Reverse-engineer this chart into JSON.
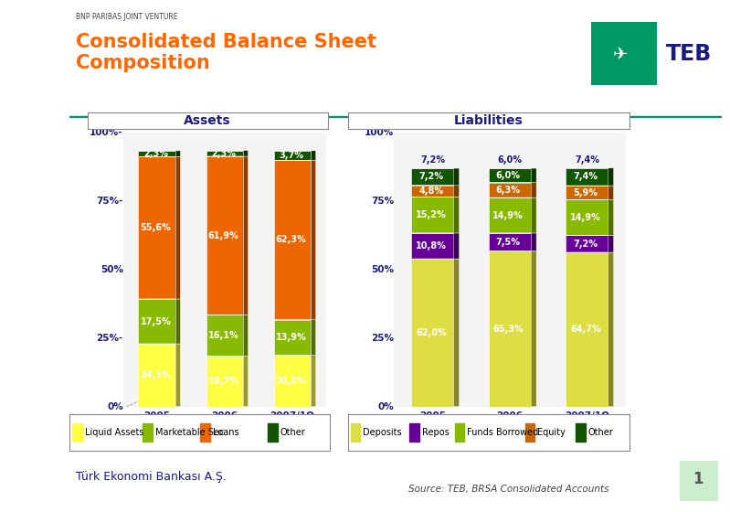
{
  "title_small": "BNP PARIBAS JOINT VENTURE",
  "title_large": "Consolidated Balance Sheet\nComposition",
  "title_color": "#FF6600",
  "bg_color": "#FFFFFF",
  "assets_label": "Assets",
  "liabilities_label": "Liabilities",
  "years": [
    "2005",
    "2006",
    "2007/1Q"
  ],
  "assets": {
    "liquid_assets": [
      24.5,
      19.7,
      20.0
    ],
    "marketable_sec": [
      17.5,
      16.1,
      13.9
    ],
    "loans": [
      55.6,
      61.9,
      62.3
    ],
    "other": [
      2.3,
      2.3,
      3.7
    ]
  },
  "assets_colors": {
    "liquid_assets": "#FFFF44",
    "marketable_sec": "#88BB00",
    "loans": "#EE6600",
    "other": "#115500"
  },
  "assets_legend": [
    "Liquid Assets",
    "Marketable Sec.",
    "Loans",
    "Other"
  ],
  "liabilities": {
    "deposits": [
      62.0,
      65.3,
      64.7
    ],
    "repos": [
      10.8,
      7.5,
      7.2
    ],
    "funds_borrowed": [
      15.2,
      14.9,
      14.9
    ],
    "equity": [
      4.8,
      6.3,
      5.9
    ],
    "other": [
      7.2,
      6.0,
      7.4
    ]
  },
  "liabilities_colors": {
    "deposits": "#DDDD44",
    "repos": "#660099",
    "funds_borrowed": "#88BB00",
    "equity": "#CC6600",
    "other": "#115500"
  },
  "liabilities_legend": [
    "Deposits",
    "Repos",
    "Funds Borrowed",
    "Equity",
    "Other"
  ],
  "footer_left": "Türk Ekonomi Bankası A.Ş.",
  "footer_right": "Source: TEB, BRSA Consolidated Accounts",
  "teb_logo_color": "#009966",
  "teb_text_color": "#1A1A80",
  "deco_color": "#007766",
  "ytick_labels_assets": [
    "0%",
    "25%-",
    "50%",
    "75%-",
    "100%-"
  ],
  "ytick_labels_liab": [
    "0%",
    "25%",
    "50%",
    "75%",
    "100%"
  ]
}
